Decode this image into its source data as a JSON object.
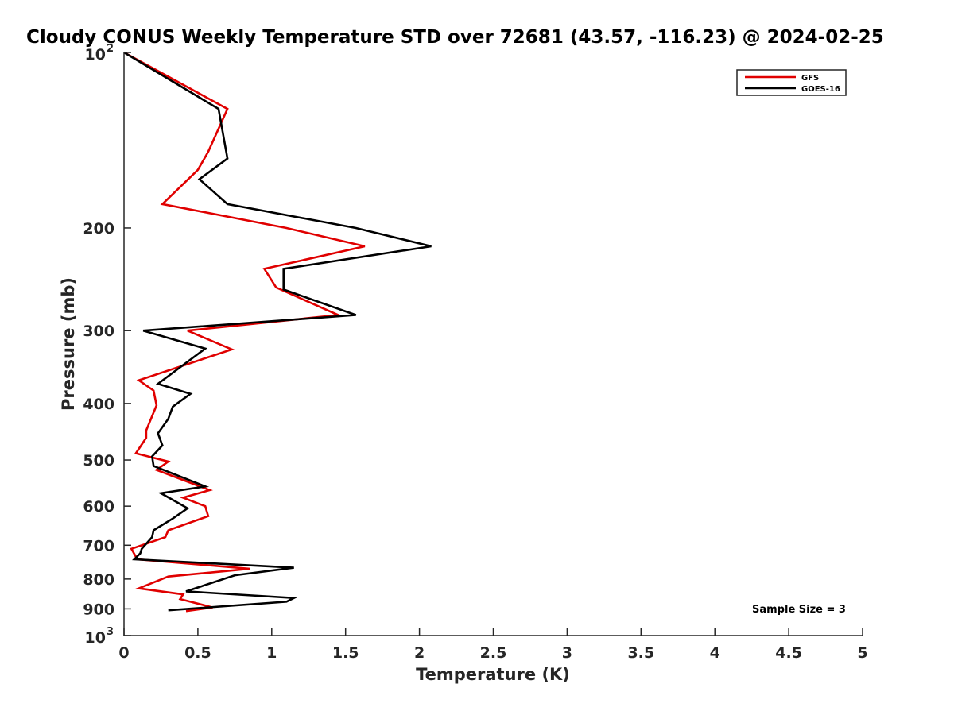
{
  "chart_data": {
    "type": "line",
    "title": "Cloudy CONUS Weekly Temperature STD over 72681 (43.57, -116.23) @ 2024-02-25",
    "xlabel": "Temperature (K)",
    "ylabel": "Pressure (mb)",
    "xlim": [
      0,
      5
    ],
    "ylim": [
      100,
      1000
    ],
    "y_scale": "log",
    "y_reversed": true,
    "x_ticks": [
      {
        "value": 0,
        "label": "0"
      },
      {
        "value": 0.5,
        "label": "0.5"
      },
      {
        "value": 1,
        "label": "1"
      },
      {
        "value": 1.5,
        "label": "1.5"
      },
      {
        "value": 2,
        "label": "2"
      },
      {
        "value": 2.5,
        "label": "2.5"
      },
      {
        "value": 3,
        "label": "3"
      },
      {
        "value": 3.5,
        "label": "3.5"
      },
      {
        "value": 4,
        "label": "4"
      },
      {
        "value": 4.5,
        "label": "4.5"
      },
      {
        "value": 5,
        "label": "5"
      }
    ],
    "y_ticks": [
      {
        "value": 100,
        "base": "10",
        "exp": "2"
      },
      {
        "value": 200,
        "label": "200"
      },
      {
        "value": 300,
        "label": "300"
      },
      {
        "value": 400,
        "label": "400"
      },
      {
        "value": 500,
        "label": "500"
      },
      {
        "value": 600,
        "label": "600"
      },
      {
        "value": 700,
        "label": "700"
      },
      {
        "value": 800,
        "label": "800"
      },
      {
        "value": 900,
        "label": "900"
      },
      {
        "value": 1000,
        "base": "10",
        "exp": "3"
      }
    ],
    "grid": false,
    "legend_position": "top-right",
    "annotation": "Sample Size = 3",
    "series": [
      {
        "name": "GFS",
        "color": "#e00000",
        "points": [
          [
            0.0,
            100
          ],
          [
            0.7,
            125
          ],
          [
            0.57,
            148
          ],
          [
            0.5,
            159
          ],
          [
            0.26,
            182
          ],
          [
            1.1,
            200
          ],
          [
            1.63,
            215
          ],
          [
            0.95,
            235
          ],
          [
            1.03,
            253
          ],
          [
            1.45,
            282
          ],
          [
            0.43,
            300
          ],
          [
            0.73,
            323
          ],
          [
            0.1,
            365
          ],
          [
            0.2,
            380
          ],
          [
            0.22,
            403
          ],
          [
            0.15,
            445
          ],
          [
            0.15,
            458
          ],
          [
            0.08,
            487
          ],
          [
            0.3,
            503
          ],
          [
            0.22,
            520
          ],
          [
            0.58,
            563
          ],
          [
            0.4,
            580
          ],
          [
            0.55,
            600
          ],
          [
            0.57,
            624
          ],
          [
            0.3,
            660
          ],
          [
            0.28,
            678
          ],
          [
            0.05,
            710
          ],
          [
            0.09,
            740
          ],
          [
            0.85,
            768
          ],
          [
            0.3,
            792
          ],
          [
            0.1,
            830
          ],
          [
            0.4,
            850
          ],
          [
            0.38,
            866
          ],
          [
            0.6,
            895
          ],
          [
            0.42,
            908
          ]
        ]
      },
      {
        "name": "GOES-16",
        "color": "#000000",
        "points": [
          [
            0.0,
            100
          ],
          [
            0.64,
            125
          ],
          [
            0.7,
            152
          ],
          [
            0.51,
            165
          ],
          [
            0.7,
            182
          ],
          [
            1.57,
            200
          ],
          [
            2.08,
            215
          ],
          [
            1.08,
            235
          ],
          [
            1.08,
            255
          ],
          [
            1.57,
            282
          ],
          [
            0.13,
            300
          ],
          [
            0.55,
            322
          ],
          [
            0.23,
            370
          ],
          [
            0.45,
            385
          ],
          [
            0.33,
            405
          ],
          [
            0.3,
            425
          ],
          [
            0.23,
            450
          ],
          [
            0.26,
            472
          ],
          [
            0.19,
            493
          ],
          [
            0.2,
            512
          ],
          [
            0.55,
            555
          ],
          [
            0.25,
            570
          ],
          [
            0.43,
            605
          ],
          [
            0.33,
            630
          ],
          [
            0.2,
            660
          ],
          [
            0.19,
            678
          ],
          [
            0.12,
            710
          ],
          [
            0.11,
            723
          ],
          [
            0.07,
            740
          ],
          [
            1.15,
            765
          ],
          [
            0.75,
            788
          ],
          [
            0.42,
            840
          ],
          [
            1.15,
            862
          ],
          [
            1.1,
            875
          ],
          [
            0.3,
            905
          ]
        ]
      }
    ]
  }
}
